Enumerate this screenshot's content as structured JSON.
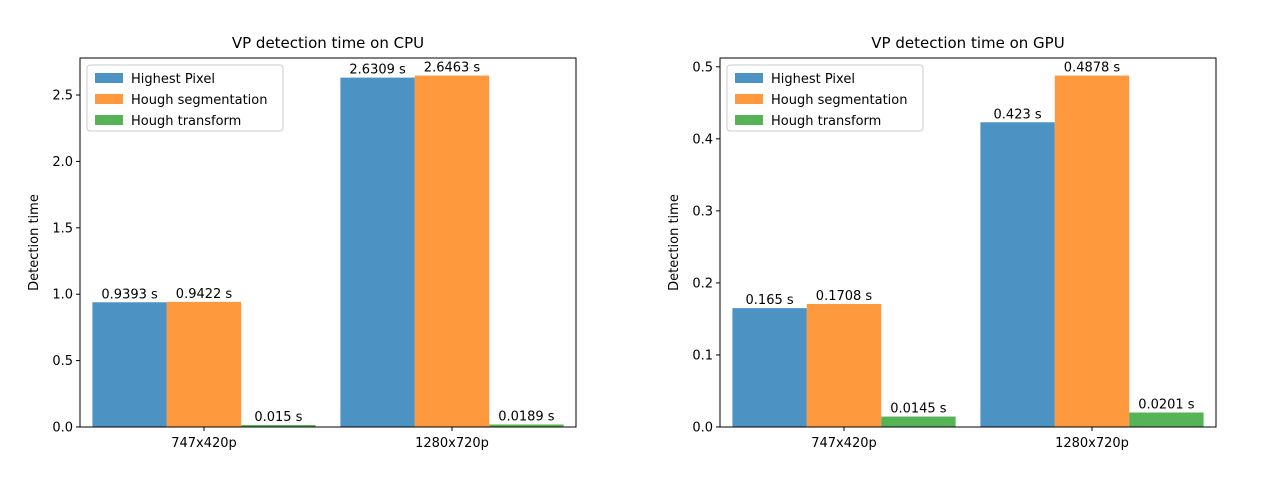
{
  "chart_data": [
    {
      "type": "bar",
      "title": "VP detection time on CPU",
      "xlabel": "",
      "ylabel": "Detection time",
      "categories": [
        "747x420p",
        "1280x720p"
      ],
      "series": [
        {
          "name": "Highest Pixel",
          "values": [
            0.9393,
            2.6309
          ],
          "labels": [
            "0.9393 s",
            "2.6309 s"
          ],
          "color": "#4c92c3"
        },
        {
          "name": "Hough segmentation",
          "values": [
            0.9422,
            2.6463
          ],
          "labels": [
            "0.9422 s",
            "2.6463 s"
          ],
          "color": "#ff993e"
        },
        {
          "name": "Hough transform",
          "values": [
            0.015,
            0.0189
          ],
          "labels": [
            "0.015 s",
            "0.0189 s"
          ],
          "color": "#56b356"
        }
      ],
      "ylim": [
        0,
        2.7786
      ],
      "yticks": [
        0.0,
        0.5,
        1.0,
        1.5,
        2.0,
        2.5
      ],
      "ytick_labels": [
        "0.0",
        "0.5",
        "1.0",
        "1.5",
        "2.0",
        "2.5"
      ],
      "legend": "top-left"
    },
    {
      "type": "bar",
      "title": "VP detection time on GPU",
      "xlabel": "",
      "ylabel": "Detection time",
      "categories": [
        "747x420p",
        "1280x720p"
      ],
      "series": [
        {
          "name": "Highest Pixel",
          "values": [
            0.165,
            0.423
          ],
          "labels": [
            "0.165 s",
            "0.423 s"
          ],
          "color": "#4c92c3"
        },
        {
          "name": "Hough segmentation",
          "values": [
            0.1708,
            0.4878
          ],
          "labels": [
            "0.1708 s",
            "0.4878 s"
          ],
          "color": "#ff993e"
        },
        {
          "name": "Hough transform",
          "values": [
            0.0145,
            0.0201
          ],
          "labels": [
            "0.0145 s",
            "0.0201 s"
          ],
          "color": "#56b356"
        }
      ],
      "ylim": [
        0,
        0.5122
      ],
      "yticks": [
        0.0,
        0.1,
        0.2,
        0.3,
        0.4,
        0.5
      ],
      "ytick_labels": [
        "0.0",
        "0.1",
        "0.2",
        "0.3",
        "0.4",
        "0.5"
      ],
      "legend": "top-left"
    }
  ]
}
